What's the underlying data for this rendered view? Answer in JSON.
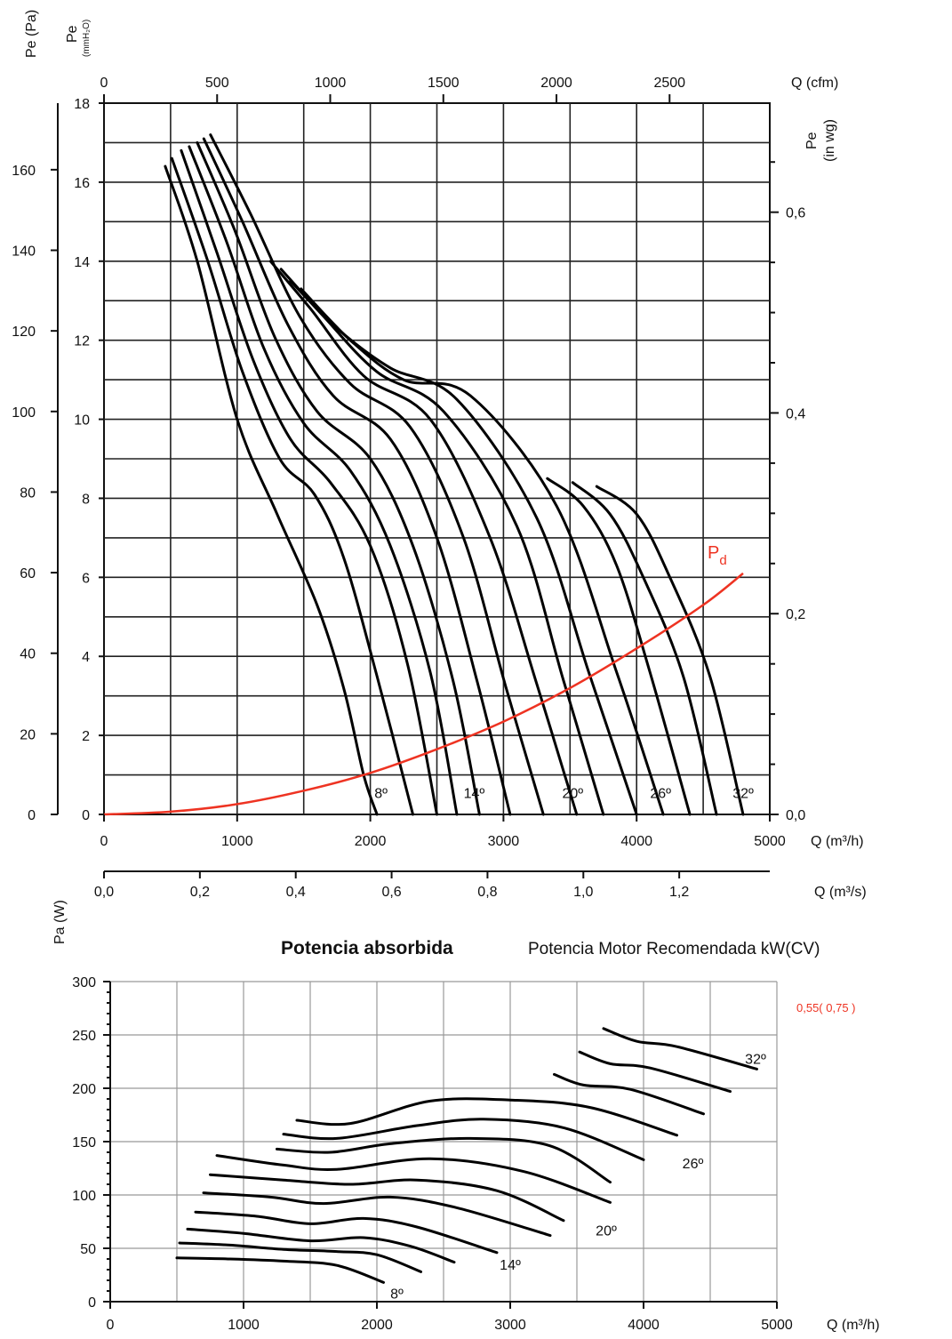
{
  "chart_data": [
    {
      "type": "line",
      "ylabel_left_pa": "Pe (Pa)",
      "ylabel_left_mm": "Pe",
      "ylabel_left_mm_unit": "(mmH₂O)",
      "ylabel_right": "Pe",
      "ylabel_right_unit": "(in wg)",
      "xlabel_bottom": "Q (m³/h)",
      "xlabel_top": "Q (cfm)",
      "xlabel_ms": "Q (m³/s)",
      "xlim": [
        0,
        5000
      ],
      "ylim_mm": [
        0,
        18
      ],
      "x_ticks": [
        "0",
        "1000",
        "2000",
        "3000",
        "4000",
        "5000"
      ],
      "cfm_ticks": [
        "0",
        "500",
        "1000",
        "1500",
        "2000",
        "2500"
      ],
      "ms_ticks": [
        "0,0",
        "0,2",
        "0,4",
        "0,6",
        "0,8",
        "1,0",
        "1,2"
      ],
      "mm_ticks": [
        "0",
        "2",
        "4",
        "6",
        "8",
        "10",
        "12",
        "14",
        "16",
        "18"
      ],
      "pa_ticks": [
        "0",
        "20",
        "40",
        "60",
        "80",
        "100",
        "120",
        "140",
        "160"
      ],
      "inwg_ticks": [
        "0,0",
        "0,2",
        "0,4",
        "0,6"
      ],
      "angle_labels": [
        {
          "text": "8º",
          "x": 2080,
          "y": 0.55
        },
        {
          "text": "14º",
          "x": 2780,
          "y": 0.55
        },
        {
          "text": "20º",
          "x": 3520,
          "y": 0.55
        },
        {
          "text": "26º",
          "x": 4180,
          "y": 0.55
        },
        {
          "text": "32º",
          "x": 4800,
          "y": 0.55
        }
      ],
      "pd_label": "P",
      "pd_sub": "d",
      "pd_color": "#ee3322",
      "pd_curve": {
        "x": [
          0,
          500,
          1000,
          1500,
          2000,
          2500,
          3000,
          3500,
          4000,
          4500,
          4800
        ],
        "y": [
          0,
          0.07,
          0.26,
          0.6,
          1.05,
          1.65,
          2.35,
          3.2,
          4.2,
          5.3,
          6.1
        ]
      },
      "series": [
        {
          "values": [
            [
              460,
              16.4
            ],
            [
              700,
              14.0
            ],
            [
              1000,
              10.0
            ],
            [
              1300,
              7.6
            ],
            [
              1600,
              5.3
            ],
            [
              1800,
              3.2
            ],
            [
              1950,
              1.0
            ],
            [
              2050,
              0
            ]
          ]
        },
        {
          "values": [
            [
              510,
              16.6
            ],
            [
              780,
              14.0
            ],
            [
              1040,
              11.2
            ],
            [
              1320,
              9.0
            ],
            [
              1580,
              8.1
            ],
            [
              1800,
              6.5
            ],
            [
              2050,
              3.5
            ],
            [
              2320,
              0
            ]
          ]
        },
        {
          "values": [
            [
              580,
              16.8
            ],
            [
              850,
              14.2
            ],
            [
              1120,
              11.5
            ],
            [
              1400,
              9.5
            ],
            [
              1700,
              8.4
            ],
            [
              2000,
              6.8
            ],
            [
              2280,
              3.8
            ],
            [
              2500,
              0
            ]
          ]
        },
        {
          "values": [
            [
              640,
              16.9
            ],
            [
              920,
              14.5
            ],
            [
              1200,
              11.8
            ],
            [
              1500,
              9.9
            ],
            [
              1850,
              8.7
            ],
            [
              2150,
              6.8
            ],
            [
              2450,
              3.6
            ],
            [
              2650,
              0
            ]
          ]
        },
        {
          "values": [
            [
              700,
              17.0
            ],
            [
              980,
              14.8
            ],
            [
              1280,
              12.1
            ],
            [
              1600,
              10.2
            ],
            [
              2000,
              9.0
            ],
            [
              2320,
              6.8
            ],
            [
              2620,
              3.4
            ],
            [
              2820,
              0
            ]
          ]
        },
        {
          "values": [
            [
              750,
              17.1
            ],
            [
              1040,
              15.0
            ],
            [
              1380,
              12.4
            ],
            [
              1720,
              10.6
            ],
            [
              2150,
              9.5
            ],
            [
              2500,
              7.0
            ],
            [
              2800,
              3.4
            ],
            [
              3050,
              0
            ]
          ]
        },
        {
          "values": [
            [
              800,
              17.2
            ],
            [
              1100,
              15.2
            ],
            [
              1470,
              12.6
            ],
            [
              1850,
              10.9
            ],
            [
              2300,
              9.8
            ],
            [
              2700,
              7.0
            ],
            [
              3020,
              3.2
            ],
            [
              3300,
              0
            ]
          ]
        },
        {
          "values": [
            [
              1250,
              14.0
            ],
            [
              1550,
              12.8
            ],
            [
              1950,
              11.1
            ],
            [
              2450,
              10.0
            ],
            [
              2900,
              7.0
            ],
            [
              3250,
              3.3
            ],
            [
              3550,
              0
            ]
          ]
        },
        {
          "values": [
            [
              1330,
              13.8
            ],
            [
              1650,
              12.6
            ],
            [
              2050,
              11.2
            ],
            [
              2550,
              10.2
            ],
            [
              3100,
              7.3
            ],
            [
              3450,
              3.4
            ],
            [
              3750,
              0
            ]
          ]
        },
        {
          "values": [
            [
              1400,
              13.5
            ],
            [
              1750,
              12.3
            ],
            [
              2150,
              11.3
            ],
            [
              2650,
              10.5
            ],
            [
              3250,
              7.5
            ],
            [
              3650,
              3.5
            ],
            [
              4000,
              0
            ]
          ]
        },
        {
          "values": [
            [
              1480,
              13.3
            ],
            [
              1850,
              12.0
            ],
            [
              2250,
              11.0
            ],
            [
              2750,
              10.6
            ],
            [
              3400,
              7.8
            ],
            [
              3850,
              3.6
            ],
            [
              4200,
              0
            ]
          ]
        },
        {
          "values": [
            [
              3330,
              8.5
            ],
            [
              3600,
              7.8
            ],
            [
              3850,
              6.3
            ],
            [
              4100,
              3.6
            ],
            [
              4400,
              0
            ]
          ]
        },
        {
          "values": [
            [
              3520,
              8.4
            ],
            [
              3800,
              7.6
            ],
            [
              4050,
              6.0
            ],
            [
              4350,
              3.5
            ],
            [
              4600,
              0
            ]
          ]
        },
        {
          "values": [
            [
              3700,
              8.3
            ],
            [
              4000,
              7.6
            ],
            [
              4250,
              6.0
            ],
            [
              4550,
              3.5
            ],
            [
              4800,
              0
            ]
          ]
        }
      ]
    },
    {
      "type": "line",
      "title": "Potencia absorbida",
      "subtitle": "Potencia Motor Recomendada kW(CV)",
      "motor_note": "0,55( 0,75 )",
      "motor_note_color": "#ee3322",
      "ylabel": "Pa (W)",
      "xlabel": "Q (m³/h)",
      "xlim": [
        0,
        5000
      ],
      "ylim": [
        0,
        300
      ],
      "x_ticks": [
        "0",
        "1000",
        "2000",
        "3000",
        "4000",
        "5000"
      ],
      "y_ticks": [
        "0",
        "50",
        "100",
        "150",
        "200",
        "250",
        "300"
      ],
      "angle_labels": [
        {
          "text": "8º",
          "x": 2150,
          "y": 8
        },
        {
          "text": "14º",
          "x": 3000,
          "y": 35
        },
        {
          "text": "20º",
          "x": 3720,
          "y": 67
        },
        {
          "text": "26º",
          "x": 4370,
          "y": 130
        },
        {
          "text": "32º",
          "x": 4840,
          "y": 228
        }
      ],
      "series": [
        {
          "values": [
            [
              500,
              41
            ],
            [
              900,
              40
            ],
            [
              1300,
              38
            ],
            [
              1700,
              34
            ],
            [
              2050,
              18
            ]
          ]
        },
        {
          "values": [
            [
              520,
              55
            ],
            [
              900,
              53
            ],
            [
              1300,
              49
            ],
            [
              1700,
              47
            ],
            [
              2000,
              44
            ],
            [
              2330,
              28
            ]
          ]
        },
        {
          "values": [
            [
              580,
              68
            ],
            [
              1000,
              64
            ],
            [
              1500,
              57
            ],
            [
              1900,
              60
            ],
            [
              2250,
              52
            ],
            [
              2580,
              37
            ]
          ]
        },
        {
          "values": [
            [
              640,
              84
            ],
            [
              1100,
              80
            ],
            [
              1500,
              73
            ],
            [
              1900,
              78
            ],
            [
              2300,
              70
            ],
            [
              2900,
              46
            ]
          ]
        },
        {
          "values": [
            [
              700,
              102
            ],
            [
              1200,
              98
            ],
            [
              1600,
              92
            ],
            [
              2100,
              98
            ],
            [
              2600,
              88
            ],
            [
              3300,
              62
            ]
          ]
        },
        {
          "values": [
            [
              750,
              119
            ],
            [
              1300,
              114
            ],
            [
              1800,
              110
            ],
            [
              2300,
              114
            ],
            [
              2900,
              104
            ],
            [
              3400,
              76
            ]
          ]
        },
        {
          "values": [
            [
              800,
              137
            ],
            [
              1300,
              128
            ],
            [
              1700,
              124
            ],
            [
              2400,
              134
            ],
            [
              3100,
              122
            ],
            [
              3750,
              93
            ]
          ]
        },
        {
          "values": [
            [
              1250,
              143
            ],
            [
              1650,
              140
            ],
            [
              2100,
              148
            ],
            [
              2700,
              153
            ],
            [
              3300,
              146
            ],
            [
              3750,
              112
            ]
          ]
        },
        {
          "values": [
            [
              1300,
              157
            ],
            [
              1700,
              153
            ],
            [
              2300,
              165
            ],
            [
              2800,
              171
            ],
            [
              3400,
              163
            ],
            [
              4000,
              133
            ]
          ]
        },
        {
          "values": [
            [
              1400,
              170
            ],
            [
              1800,
              167
            ],
            [
              2400,
              188
            ],
            [
              3000,
              189
            ],
            [
              3600,
              182
            ],
            [
              4250,
              156
            ]
          ]
        },
        {
          "values": [
            [
              3330,
              213
            ],
            [
              3550,
              203
            ],
            [
              3900,
              199
            ],
            [
              4450,
              176
            ]
          ]
        },
        {
          "values": [
            [
              3520,
              234
            ],
            [
              3750,
              223
            ],
            [
              4050,
              219
            ],
            [
              4650,
              197
            ]
          ]
        },
        {
          "values": [
            [
              3700,
              256
            ],
            [
              3950,
              244
            ],
            [
              4250,
              239
            ],
            [
              4850,
              218
            ]
          ]
        }
      ]
    }
  ]
}
